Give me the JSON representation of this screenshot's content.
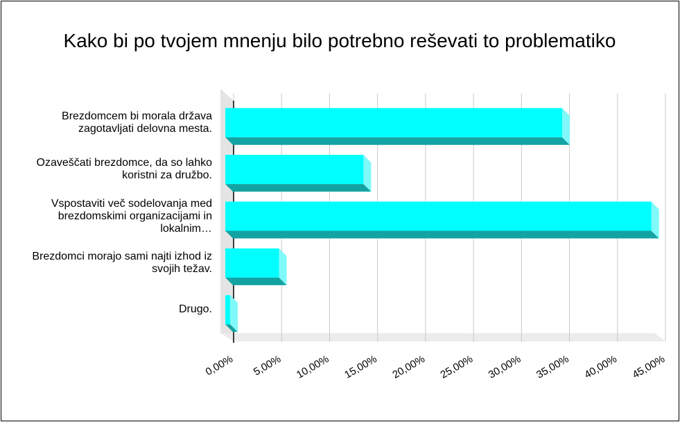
{
  "chart_data": {
    "type": "bar",
    "orientation": "horizontal",
    "title": "Kako bi po tvojem mnenju bilo potrebno reševati to problematiko",
    "categories": [
      "Brezdomcem bi morala država zagotavljati delovna mesta.",
      "Ozaveščati brezdomce, da so lahko koristni za družbo.",
      "Vspostaviti več sodelovanja med brezdomskimi organizacijami in lokalnim…",
      "Brezdomci morajo sami najti izhod iz svojih težav.",
      "Drugo."
    ],
    "values": [
      35.1,
      14.4,
      44.4,
      5.6,
      0.5
    ],
    "color": "#00ffff",
    "xlim": [
      0,
      45
    ],
    "xticks": [
      {
        "value": 0,
        "label": "0,00%"
      },
      {
        "value": 5,
        "label": "5,00%"
      },
      {
        "value": 10,
        "label": "10,00%"
      },
      {
        "value": 15,
        "label": "15,00%"
      },
      {
        "value": 20,
        "label": "20,00%"
      },
      {
        "value": 25,
        "label": "25,00%"
      },
      {
        "value": 30,
        "label": "30,00%"
      },
      {
        "value": 35,
        "label": "35,00%"
      },
      {
        "value": 40,
        "label": "40,00%"
      },
      {
        "value": 45,
        "label": "45,00%"
      }
    ],
    "grid": true
  }
}
